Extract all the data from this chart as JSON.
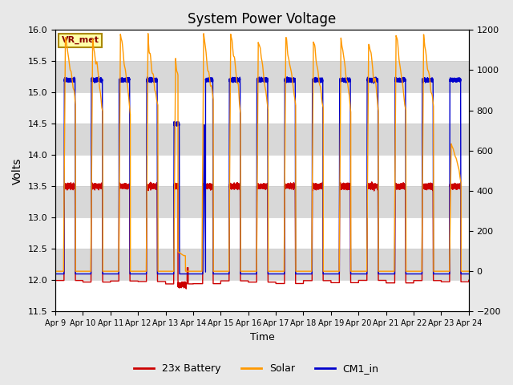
{
  "title": "System Power Voltage",
  "xlabel": "Time",
  "ylabel": "Volts",
  "left_ylim": [
    11.5,
    16.0
  ],
  "right_ylim": [
    -200,
    1200
  ],
  "left_yticks": [
    11.5,
    12.0,
    12.5,
    13.0,
    13.5,
    14.0,
    14.5,
    15.0,
    15.5,
    16.0
  ],
  "right_yticks": [
    -200,
    0,
    200,
    400,
    600,
    800,
    1000,
    1200
  ],
  "xtick_labels": [
    "Apr 9",
    "Apr 10",
    "Apr 11",
    "Apr 12",
    "Apr 13",
    "Apr 14",
    "Apr 15",
    "Apr 16",
    "Apr 17",
    "Apr 18",
    "Apr 19",
    "Apr 20",
    "Apr 21",
    "Apr 22",
    "Apr 23",
    "Apr 24"
  ],
  "n_days": 16,
  "legend_labels": [
    "23x Battery",
    "Solar",
    "CM1_in"
  ],
  "legend_colors": [
    "#cc0000",
    "#ff9900",
    "#0000cc"
  ],
  "vr_met_label": "VR_met",
  "battery_color": "#cc0000",
  "solar_color": "#ff9900",
  "cm1_color": "#0000cc",
  "line_width": 1.0,
  "background_color": "#e8e8e8",
  "plot_bg_color": "white",
  "title_fontsize": 12,
  "band_color": "#d8d8d8",
  "band_alpha": 1.0
}
